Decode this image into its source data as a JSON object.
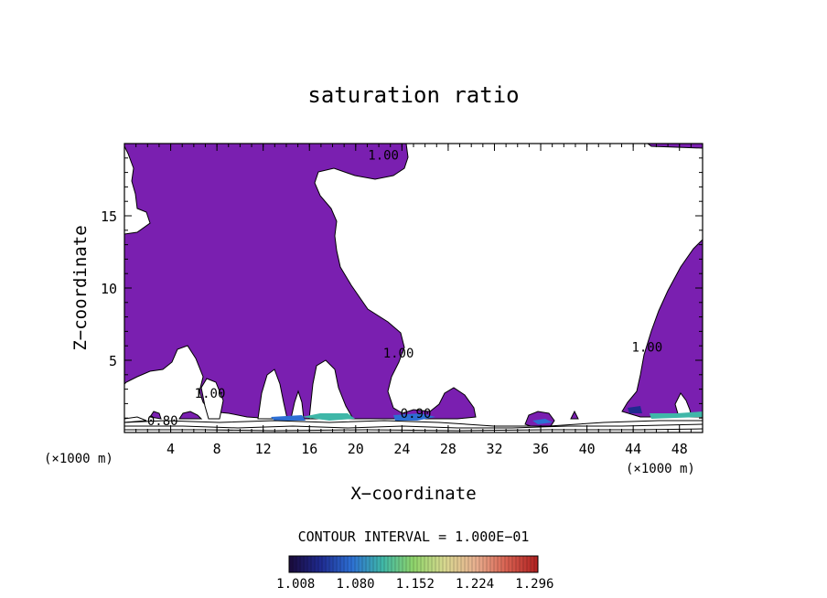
{
  "chart_data": {
    "type": "contour",
    "title": "saturation ratio",
    "xlabel": "X−coordinate",
    "ylabel": "Z−coordinate",
    "x_unit_left": "(×1000 m)",
    "x_unit_right": "(×1000 m)",
    "xlim": [
      0,
      50
    ],
    "ylim": [
      0,
      20
    ],
    "x_ticks": [
      4,
      8,
      12,
      16,
      20,
      24,
      28,
      32,
      36,
      40,
      44,
      48
    ],
    "y_ticks": [
      5,
      10,
      15
    ],
    "contour_interval_text": "CONTOUR INTERVAL = 1.000E−01",
    "contour_labels": [
      {
        "text": "1.00",
        "x": 22.4,
        "z": 18.9
      },
      {
        "text": "1.00",
        "x": 23.7,
        "z": 5.2
      },
      {
        "text": "1.00",
        "x": 45.2,
        "z": 5.6
      },
      {
        "text": "1.00",
        "x": 7.4,
        "z": 2.4
      },
      {
        "text": "0.80",
        "x": 3.3,
        "z": 0.5
      },
      {
        "text": "0.90",
        "x": 25.2,
        "z": 1.0
      }
    ],
    "colorbar": {
      "min": 1.0,
      "max": 1.3,
      "tick_labels": [
        "1.008",
        "1.080",
        "1.152",
        "1.224",
        "1.296"
      ],
      "colors": [
        "#1a0a3a",
        "#1f2a8f",
        "#2d6fd4",
        "#3fb7a8",
        "#8fd46a",
        "#d8d890",
        "#e8b090",
        "#d86050",
        "#b02020"
      ]
    },
    "fill_color": "#7a1fb0",
    "fill_level": 1.0
  }
}
